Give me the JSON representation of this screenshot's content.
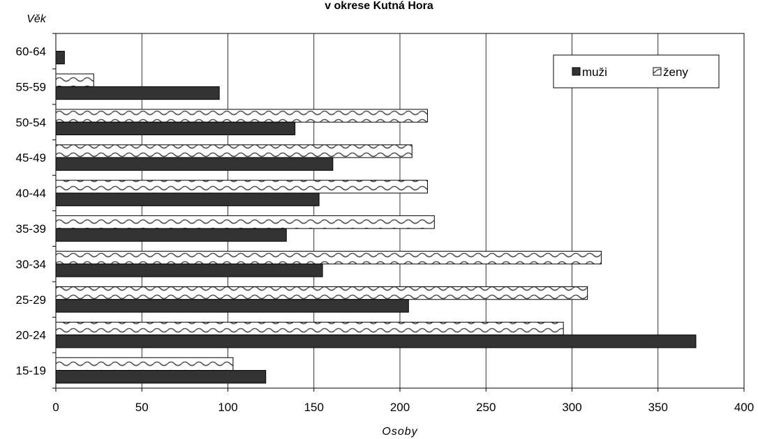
{
  "chart_data": {
    "type": "bar",
    "orientation": "horizontal",
    "title": "v okrese Kutná Hora",
    "xlabel": "Osoby",
    "ylabel": "Věk",
    "xlim": [
      0,
      400
    ],
    "xticks": [
      "0",
      "50",
      "100",
      "150",
      "200",
      "250",
      "300",
      "350",
      "400"
    ],
    "grid": "vertical",
    "legend_position": "top-right",
    "categories": [
      "15-19",
      "20-24",
      "25-29",
      "30-34",
      "35-39",
      "40-44",
      "45-49",
      "50-54",
      "55-59",
      "60-64"
    ],
    "series": [
      {
        "name": "muži",
        "color": "#333333",
        "pattern": "solid",
        "values": [
          122,
          372,
          205,
          155,
          134,
          153,
          161,
          139,
          95,
          5
        ]
      },
      {
        "name": "ženy",
        "color": "#ffffff",
        "pattern": "wave",
        "values": [
          103,
          295,
          309,
          317,
          220,
          216,
          207,
          216,
          22,
          0
        ]
      }
    ]
  }
}
